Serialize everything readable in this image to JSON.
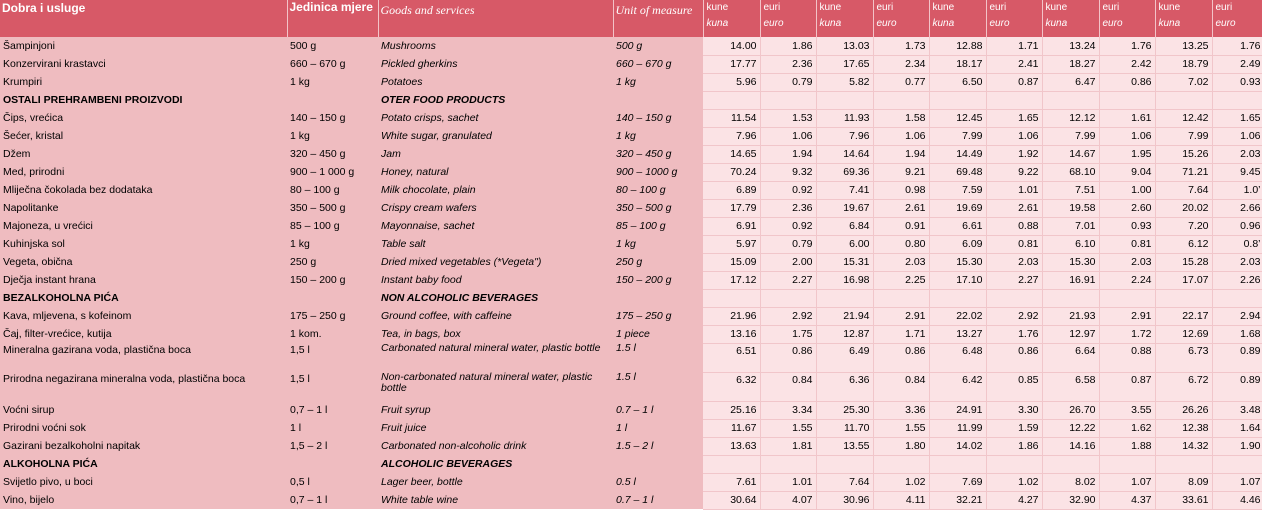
{
  "header": {
    "col_hr": "Dobra i usluge",
    "col_unit_hr": "Jedinica mjere",
    "col_en": "Goods and services",
    "col_unit_en": "Unit of measure",
    "price_groups": [
      {
        "top": "kune",
        "sub": "kuna"
      },
      {
        "top": "euri",
        "sub": "euro"
      },
      {
        "top": "kune",
        "sub": "kuna"
      },
      {
        "top": "euri",
        "sub": "euro"
      },
      {
        "top": "kune",
        "sub": "kuna"
      },
      {
        "top": "euri",
        "sub": "euro"
      },
      {
        "top": "kune",
        "sub": "kuna"
      },
      {
        "top": "euri",
        "sub": "euro"
      },
      {
        "top": "kune",
        "sub": "kuna"
      },
      {
        "top": "euri",
        "sub": "euro"
      }
    ]
  },
  "rows": [
    {
      "type": "item",
      "hr": "Šampinjoni",
      "unit_hr": "500 g",
      "en": "Mushrooms",
      "unit_en": "500 g",
      "values": [
        "14.00",
        "1.86",
        "13.03",
        "1.73",
        "12.88",
        "1.71",
        "13.24",
        "1.76",
        "13.25",
        "1.76"
      ]
    },
    {
      "type": "item",
      "hr": "Konzervirani krastavci",
      "unit_hr": "660 – 670 g",
      "en": "Pickled gherkins",
      "unit_en": "660 – 670 g",
      "values": [
        "17.77",
        "2.36",
        "17.65",
        "2.34",
        "18.17",
        "2.41",
        "18.27",
        "2.42",
        "18.79",
        "2.49"
      ]
    },
    {
      "type": "item",
      "hr": "Krumpiri",
      "unit_hr": "1 kg",
      "en": "Potatoes",
      "unit_en": "1 kg",
      "values": [
        "5.96",
        "0.79",
        "5.82",
        "0.77",
        "6.50",
        "0.87",
        "6.47",
        "0.86",
        "7.02",
        "0.93"
      ]
    },
    {
      "type": "section",
      "hr": "OSTALI PREHRAMBENI PROIZVODI",
      "unit_hr": "",
      "en": "OTER FOOD PRODUCTS",
      "unit_en": "",
      "values": [
        "",
        "",
        "",
        "",
        "",
        "",
        "",
        "",
        "",
        ""
      ]
    },
    {
      "type": "item",
      "hr": "Čips, vrećica",
      "unit_hr": "140 – 150 g",
      "en": "Potato crisps, sachet",
      "unit_en": "140 – 150 g",
      "values": [
        "11.54",
        "1.53",
        "11.93",
        "1.58",
        "12.45",
        "1.65",
        "12.12",
        "1.61",
        "12.42",
        "1.65"
      ]
    },
    {
      "type": "item",
      "hr": "Šećer, kristal",
      "unit_hr": "1 kg",
      "en": "White sugar, granulated",
      "unit_en": "1 kg",
      "values": [
        "7.96",
        "1.06",
        "7.96",
        "1.06",
        "7.99",
        "1.06",
        "7.99",
        "1.06",
        "7.99",
        "1.06"
      ]
    },
    {
      "type": "item",
      "hr": "Džem",
      "unit_hr": "320 – 450 g",
      "en": "Jam",
      "unit_en": "320 – 450 g",
      "values": [
        "14.65",
        "1.94",
        "14.64",
        "1.94",
        "14.49",
        "1.92",
        "14.67",
        "1.95",
        "15.26",
        "2.03"
      ]
    },
    {
      "type": "item",
      "hr": "Med, prirodni",
      "unit_hr": "900 – 1 000 g",
      "en": "Honey, natural",
      "unit_en": "900 – 1000 g",
      "values": [
        "70.24",
        "9.32",
        "69.36",
        "9.21",
        "69.48",
        "9.22",
        "68.10",
        "9.04",
        "71.21",
        "9.45"
      ]
    },
    {
      "type": "item",
      "hr": "Mliječna čokolada bez dodataka",
      "unit_hr": "80 – 100 g",
      "en": "Milk chocolate, plain",
      "unit_en": "80 – 100 g",
      "values": [
        "6.89",
        "0.92",
        "7.41",
        "0.98",
        "7.59",
        "1.01",
        "7.51",
        "1.00",
        "7.64",
        "1.0’"
      ]
    },
    {
      "type": "item",
      "hr": "Napolitanke",
      "unit_hr": "350 – 500 g",
      "en": "Crispy cream wafers",
      "unit_en": "350 – 500 g",
      "values": [
        "17.79",
        "2.36",
        "19.67",
        "2.61",
        "19.69",
        "2.61",
        "19.58",
        "2.60",
        "20.02",
        "2.66"
      ]
    },
    {
      "type": "item",
      "hr": "Majoneza, u vrećici",
      "unit_hr": "85 – 100 g",
      "en": "Mayonnaise, sachet",
      "unit_en": "85 – 100 g",
      "values": [
        "6.91",
        "0.92",
        "6.84",
        "0.91",
        "6.61",
        "0.88",
        "7.01",
        "0.93",
        "7.20",
        "0.96"
      ]
    },
    {
      "type": "item",
      "hr": "Kuhinjska sol",
      "unit_hr": "1 kg",
      "en": "Table salt",
      "unit_en": "1 kg",
      "values": [
        "5.97",
        "0.79",
        "6.00",
        "0.80",
        "6.09",
        "0.81",
        "6.10",
        "0.81",
        "6.12",
        "0.8’"
      ]
    },
    {
      "type": "item",
      "hr": "Vegeta, obična",
      "unit_hr": "250 g",
      "en": "Dried mixed vegetables (*Vegeta\")",
      "unit_en": "250 g",
      "values": [
        "15.09",
        "2.00",
        "15.31",
        "2.03",
        "15.30",
        "2.03",
        "15.30",
        "2.03",
        "15.28",
        "2.03"
      ]
    },
    {
      "type": "item",
      "hr": "Dječja instant hrana",
      "unit_hr": "150 – 200 g",
      "en": "Instant baby food",
      "unit_en": "150 – 200 g",
      "values": [
        "17.12",
        "2.27",
        "16.98",
        "2.25",
        "17.10",
        "2.27",
        "16.91",
        "2.24",
        "17.07",
        "2.26"
      ]
    },
    {
      "type": "section",
      "hr": "BEZALKOHOLNA PIĆA",
      "unit_hr": "",
      "en": "NON ALCOHOLIC BEVERAGES",
      "unit_en": "",
      "values": [
        "",
        "",
        "",
        "",
        "",
        "",
        "",
        "",
        "",
        ""
      ]
    },
    {
      "type": "item",
      "hr": "Kava, mljevena, s kofeinom",
      "unit_hr": "175 – 250 g",
      "en": "Ground coffee, with caffeine",
      "unit_en": "175 – 250 g",
      "values": [
        "21.96",
        "2.92",
        "21.94",
        "2.91",
        "22.02",
        "2.92",
        "21.93",
        "2.91",
        "22.17",
        "2.94"
      ]
    },
    {
      "type": "item",
      "hr": "Čaj, filter-vrećice, kutija",
      "unit_hr": "1 kom.",
      "en": "Tea, in bags, box",
      "unit_en": "1 piece",
      "values": [
        "13.16",
        "1.75",
        "12.87",
        "1.71",
        "13.27",
        "1.76",
        "12.97",
        "1.72",
        "12.69",
        "1.68"
      ]
    },
    {
      "type": "item",
      "tall": true,
      "hr": "Mineralna gazirana voda, plastična boca",
      "unit_hr": "1,5 l",
      "en": "Carbonated natural mineral water, plastic bottle",
      "unit_en": "1.5 l",
      "values": [
        "6.51",
        "0.86",
        "6.49",
        "0.86",
        "6.48",
        "0.86",
        "6.64",
        "0.88",
        "6.73",
        "0.89"
      ]
    },
    {
      "type": "item",
      "tall": true,
      "hr": "Prirodna negazirana mineralna voda, plastična boca",
      "unit_hr": "1,5 l",
      "en": "Non-carbonated natural mineral water, plastic bottle",
      "unit_en": "1.5 l",
      "values": [
        "6.32",
        "0.84",
        "6.36",
        "0.84",
        "6.42",
        "0.85",
        "6.58",
        "0.87",
        "6.72",
        "0.89"
      ]
    },
    {
      "type": "item",
      "hr": "Voćni sirup",
      "unit_hr": "0,7 – 1 l",
      "en": "Fruit syrup",
      "unit_en": "0.7 – 1 l",
      "values": [
        "25.16",
        "3.34",
        "25.30",
        "3.36",
        "24.91",
        "3.30",
        "26.70",
        "3.55",
        "26.26",
        "3.48"
      ]
    },
    {
      "type": "item",
      "hr": "Prirodni voćni sok",
      "unit_hr": "1 l",
      "en": "Fruit juice",
      "unit_en": "1 l",
      "values": [
        "11.67",
        "1.55",
        "11.70",
        "1.55",
        "11.99",
        "1.59",
        "12.22",
        "1.62",
        "12.38",
        "1.64"
      ]
    },
    {
      "type": "item",
      "hr": "Gazirani bezalkoholni napitak",
      "unit_hr": "1,5 – 2 l",
      "en": "Carbonated non-alcoholic drink",
      "unit_en": "1.5 – 2 l",
      "values": [
        "13.63",
        "1.81",
        "13.55",
        "1.80",
        "14.02",
        "1.86",
        "14.16",
        "1.88",
        "14.32",
        "1.90"
      ]
    },
    {
      "type": "section",
      "hr": "ALKOHOLNA PIĆA",
      "unit_hr": "",
      "en": "ALCOHOLIC BEVERAGES",
      "unit_en": "",
      "values": [
        "",
        "",
        "",
        "",
        "",
        "",
        "",
        "",
        "",
        ""
      ]
    },
    {
      "type": "item",
      "hr": "Svijetlo pivo, u boci",
      "unit_hr": "0,5 l",
      "en": "Lager beer, bottle",
      "unit_en": "0.5 l",
      "values": [
        "7.61",
        "1.01",
        "7.64",
        "1.02",
        "7.69",
        "1.02",
        "8.02",
        "1.07",
        "8.09",
        "1.07"
      ]
    },
    {
      "type": "item",
      "hr": "Vino, bijelo",
      "unit_hr": "0,7 – 1 l",
      "en": "White table wine",
      "unit_en": "0.7 – 1 l",
      "values": [
        "30.64",
        "4.07",
        "30.96",
        "4.11",
        "32.21",
        "4.27",
        "32.90",
        "4.37",
        "33.61",
        "4.46"
      ]
    }
  ]
}
